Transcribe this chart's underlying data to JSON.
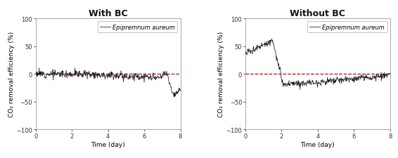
{
  "title_left": "With BC",
  "title_right": "Without BC",
  "xlabel": "Time (day)",
  "ylabel": "CO₂ removal efficiency (%)",
  "legend_label": "Epipremnum aureum",
  "xlim": [
    0,
    8
  ],
  "ylim": [
    -100,
    100
  ],
  "yticks": [
    -100,
    -50,
    0,
    50,
    100
  ],
  "xticks": [
    0,
    2,
    4,
    6,
    8
  ],
  "dashed_y": 0,
  "dashed_color": "#cc0000",
  "line_color": "#1a1a1a",
  "background_color": "#ffffff",
  "title_fontsize": 9,
  "label_fontsize": 6.5,
  "tick_fontsize": 6,
  "legend_fontsize": 6
}
